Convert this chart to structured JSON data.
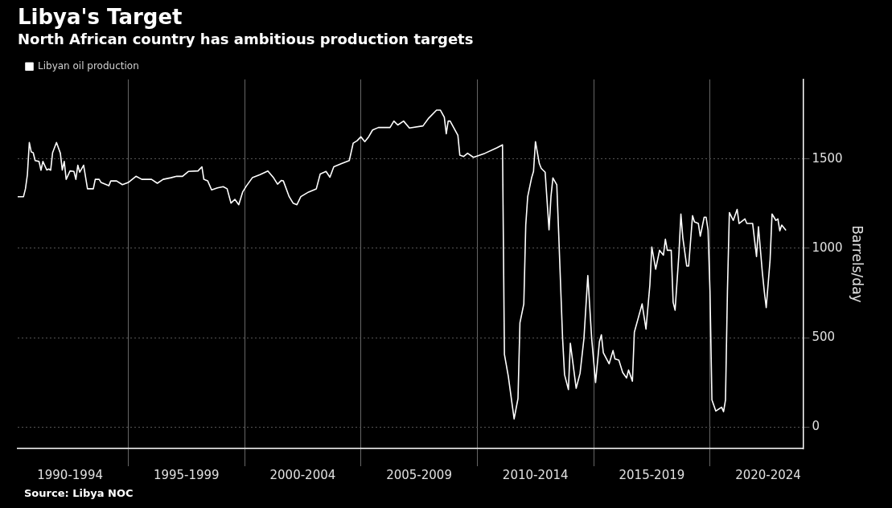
{
  "chart_data": {
    "type": "line",
    "title": "Libya's Target",
    "subtitle": "North African country has ambitious production targets",
    "ylabel": "Barrels/day",
    "annotations": [
      "Source: Libya NOC"
    ],
    "legend": "top left",
    "grid": true,
    "marker": "none",
    "line_style": "solid",
    "xlim": [
      "1990-04",
      "2024-01"
    ],
    "ylim": [
      -120,
      1945
    ],
    "xticks": [
      {
        "value": "1992-07",
        "label": "1990-1994"
      },
      {
        "value": "1995-01",
        "label": null
      },
      {
        "value": "1997-07",
        "label": "1995-1999"
      },
      {
        "value": "2000-01",
        "label": null
      },
      {
        "value": "2002-07",
        "label": "2000-2004"
      },
      {
        "value": "2005-01",
        "label": null
      },
      {
        "value": "2007-07",
        "label": "2005-2009"
      },
      {
        "value": "2010-01",
        "label": null
      },
      {
        "value": "2012-07",
        "label": "2010-2014"
      },
      {
        "value": "2015-01",
        "label": null
      },
      {
        "value": "2017-07",
        "label": "2015-2019"
      },
      {
        "value": "2020-01",
        "label": null
      },
      {
        "value": "2022-07",
        "label": "2020-2024"
      }
    ],
    "yticks": [
      0,
      500,
      1000,
      1500
    ],
    "series": [
      {
        "name": "Libyan oil production",
        "color": "#ffffff",
        "x": [
          "1990-04",
          "1990-07",
          "1990-08",
          "1990-09",
          "1990-10",
          "1990-11",
          "1990-12",
          "1991-01",
          "1991-03",
          "1991-04",
          "1991-05",
          "1991-07",
          "1991-08",
          "1991-09",
          "1991-10",
          "1991-12",
          "1992-02",
          "1992-03",
          "1992-04",
          "1992-05",
          "1992-07",
          "1992-09",
          "1992-10",
          "1992-11",
          "1992-12",
          "1993-02",
          "1993-04",
          "1993-07",
          "1993-08",
          "1993-10",
          "1993-11",
          "1994-03",
          "1994-04",
          "1994-07",
          "1994-10",
          "1995-01",
          "1995-05",
          "1995-08",
          "1996-01",
          "1996-04",
          "1996-07",
          "1996-11",
          "1997-02",
          "1997-05",
          "1997-08",
          "1998-01",
          "1998-03",
          "1998-04",
          "1998-06",
          "1998-08",
          "1998-11",
          "1999-02",
          "1999-04",
          "1999-06",
          "1999-08",
          "1999-10",
          "1999-12",
          "2000-02",
          "2000-05",
          "2000-09",
          "2001-01",
          "2001-04",
          "2001-06",
          "2001-08",
          "2001-09",
          "2001-12",
          "2002-02",
          "2002-04",
          "2002-06",
          "2002-10",
          "2003-02",
          "2003-04",
          "2003-07",
          "2003-09",
          "2003-11",
          "2004-03",
          "2004-07",
          "2004-09",
          "2004-11",
          "2005-01",
          "2005-03",
          "2005-05",
          "2005-07",
          "2005-10",
          "2006-04",
          "2006-06",
          "2006-08",
          "2006-11",
          "2007-02",
          "2007-09",
          "2007-12",
          "2008-04",
          "2008-06",
          "2008-08",
          "2008-09",
          "2008-10",
          "2008-11",
          "2009-03",
          "2009-04",
          "2009-06",
          "2009-08",
          "2009-11",
          "2010-05",
          "2010-11",
          "2011-02",
          "2011-03",
          "2011-05",
          "2011-07",
          "2011-08",
          "2011-10",
          "2011-11",
          "2012-01",
          "2012-02",
          "2012-03",
          "2012-05",
          "2012-06",
          "2012-07",
          "2012-09",
          "2012-10",
          "2012-12",
          "2013-02",
          "2013-03",
          "2013-04",
          "2013-06",
          "2013-07",
          "2013-09",
          "2013-10",
          "2013-12",
          "2014-01",
          "2014-03",
          "2014-04",
          "2014-06",
          "2014-08",
          "2014-10",
          "2014-12",
          "2015-02",
          "2015-04",
          "2015-05",
          "2015-06",
          "2015-09",
          "2015-11",
          "2015-12",
          "2016-02",
          "2016-04",
          "2016-06",
          "2016-07",
          "2016-09",
          "2016-10",
          "2017-02",
          "2017-04",
          "2017-06",
          "2017-07",
          "2017-09",
          "2017-11",
          "2018-01",
          "2018-02",
          "2018-03",
          "2018-05",
          "2018-06",
          "2018-07",
          "2018-09",
          "2018-10",
          "2018-11",
          "2019-01",
          "2019-02",
          "2019-04",
          "2019-05",
          "2019-07",
          "2019-08",
          "2019-10",
          "2019-11",
          "2019-12",
          "2020-01",
          "2020-02",
          "2020-04",
          "2020-07",
          "2020-08",
          "2020-09",
          "2020-10",
          "2020-11",
          "2021-01",
          "2021-03",
          "2021-04",
          "2021-07",
          "2021-08",
          "2021-11",
          "2022-01",
          "2022-02",
          "2022-04",
          "2022-05",
          "2022-06",
          "2022-08",
          "2022-09",
          "2022-11",
          "2022-12",
          "2023-01",
          "2023-02",
          "2023-04"
        ],
        "values": [
          1289,
          1289,
          1333,
          1412,
          1592,
          1539,
          1535,
          1491,
          1486,
          1437,
          1486,
          1438,
          1444,
          1437,
          1535,
          1592,
          1532,
          1438,
          1486,
          1386,
          1433,
          1430,
          1386,
          1465,
          1426,
          1465,
          1333,
          1333,
          1386,
          1386,
          1368,
          1350,
          1377,
          1377,
          1356,
          1368,
          1403,
          1386,
          1386,
          1364,
          1386,
          1395,
          1403,
          1403,
          1430,
          1433,
          1456,
          1386,
          1377,
          1327,
          1338,
          1345,
          1333,
          1253,
          1274,
          1244,
          1315,
          1350,
          1395,
          1412,
          1433,
          1394,
          1359,
          1380,
          1377,
          1289,
          1253,
          1244,
          1289,
          1315,
          1333,
          1416,
          1430,
          1398,
          1456,
          1474,
          1491,
          1588,
          1602,
          1624,
          1597,
          1624,
          1662,
          1676,
          1676,
          1712,
          1690,
          1712,
          1673,
          1685,
          1729,
          1773,
          1773,
          1733,
          1641,
          1712,
          1712,
          1632,
          1521,
          1514,
          1532,
          1509,
          1532,
          1562,
          1579,
          407,
          284,
          125,
          46,
          160,
          583,
          689,
          1130,
          1289,
          1394,
          1430,
          1597,
          1474,
          1447,
          1426,
          1103,
          1289,
          1394,
          1356,
          1077,
          495,
          293,
          210,
          469,
          301,
          217,
          301,
          495,
          848,
          495,
          249,
          478,
          516,
          416,
          354,
          428,
          381,
          375,
          305,
          275,
          319,
          257,
          531,
          689,
          548,
          795,
          1007,
          883,
          989,
          962,
          1051,
          989,
          989,
          698,
          654,
          971,
          1192,
          1059,
          901,
          901,
          1183,
          1148,
          1139,
          1068,
          1174,
          1174,
          1103,
          760,
          152,
          90,
          111,
          86,
          152,
          760,
          1200,
          1156,
          1218,
          1139,
          1165,
          1139,
          1139,
          954,
          1121,
          866,
          760,
          668,
          936,
          1192,
          1156,
          1165,
          1098,
          1130,
          1103
        ]
      }
    ]
  }
}
